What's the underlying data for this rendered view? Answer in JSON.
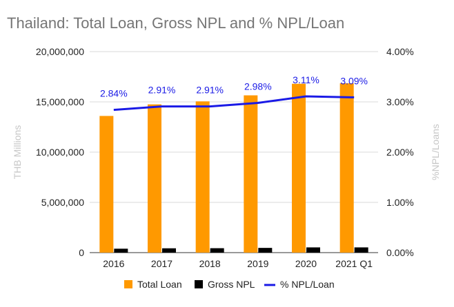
{
  "chart_data": {
    "type": "bar",
    "title": "Thailand: Total Loan, Gross NPL and % NPL/Loan",
    "categories": [
      "2016",
      "2017",
      "2018",
      "2019",
      "2020",
      "2021 Q1"
    ],
    "series": [
      {
        "name": "Total Loan",
        "kind": "bar",
        "axis": "left",
        "color": "#ff9900",
        "values": [
          13600000,
          14750000,
          15050000,
          15650000,
          16800000,
          16850000
        ]
      },
      {
        "name": "Gross NPL",
        "kind": "bar",
        "axis": "left",
        "color": "#000000",
        "values": [
          390000,
          430000,
          440000,
          470000,
          520000,
          520000
        ]
      },
      {
        "name": "% NPL/Loan",
        "kind": "line",
        "axis": "right",
        "color": "#1a1ae6",
        "values": [
          2.84,
          2.91,
          2.91,
          2.98,
          3.11,
          3.09
        ],
        "labels": [
          "2.84%",
          "2.91%",
          "2.91%",
          "2.98%",
          "3.11%",
          "3.09%"
        ]
      }
    ],
    "ylabel": "THB Millions",
    "y2label": "%NPL/Loans",
    "ylim": [
      0,
      20000000
    ],
    "y2lim": [
      0,
      4
    ],
    "yticks": [
      "0",
      "5,000,000",
      "10,000,000",
      "15,000,000",
      "20,000,000"
    ],
    "y2ticks": [
      "0.00%",
      "1.00%",
      "2.00%",
      "3.00%",
      "4.00%"
    ],
    "grid": true,
    "legend_position": "bottom"
  }
}
